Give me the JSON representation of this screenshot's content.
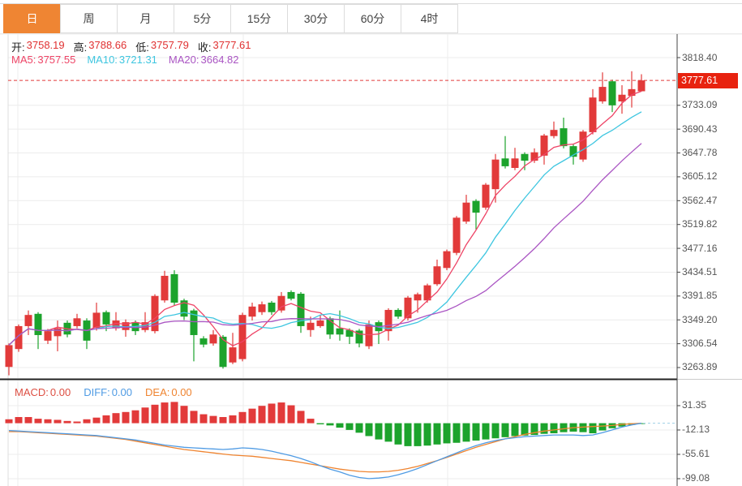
{
  "tabs": {
    "items": [
      {
        "label": "日",
        "selected": true
      },
      {
        "label": "周",
        "selected": false
      },
      {
        "label": "月",
        "selected": false
      },
      {
        "label": "5分",
        "selected": false
      },
      {
        "label": "15分",
        "selected": false
      },
      {
        "label": "30分",
        "selected": false
      },
      {
        "label": "60分",
        "selected": false
      },
      {
        "label": "4时",
        "selected": false
      }
    ]
  },
  "info": {
    "ohlc": [
      {
        "label": "开:",
        "value": "3758.19"
      },
      {
        "label": "高:",
        "value": "3788.66"
      },
      {
        "label": "低:",
        "value": "3757.79"
      },
      {
        "label": "收:",
        "value": "3777.61"
      }
    ],
    "ma": [
      {
        "label": "MA5:",
        "value": "3757.55",
        "color": "#ee4466"
      },
      {
        "label": "MA10:",
        "value": "3721.31",
        "color": "#3ec6e0"
      },
      {
        "label": "MA20:",
        "value": "3664.82",
        "color": "#aa55c3"
      }
    ],
    "macd": [
      {
        "label": "MACD:",
        "value": "0.00",
        "color": "#dd4f43"
      },
      {
        "label": "DIFF:",
        "value": "0.00",
        "color": "#4f9be4"
      },
      {
        "label": "DEA:",
        "value": "0.00",
        "color": "#ef8430"
      }
    ]
  },
  "colors": {
    "up": "#e23a3a",
    "down": "#1ca32c",
    "ma5": "#ee4466",
    "ma10": "#3ec6e0",
    "ma20": "#aa55c3",
    "diff": "#4f9be4",
    "dea": "#ef8430",
    "price_line": "#e23a3a",
    "badge_bg": "#e8220f",
    "grid": "#ececec",
    "axis": "#444",
    "tab_selected": "#ef8533"
  },
  "chart_data": {
    "type": "candlestick",
    "subpanel": "macd",
    "main": {
      "ticks": [
        {
          "label": "3818.40",
          "value": 3818.4
        },
        {
          "label": "3733.09",
          "value": 3733.09
        },
        {
          "label": "3690.43",
          "value": 3690.43
        },
        {
          "label": "3647.78",
          "value": 3647.78
        },
        {
          "label": "3605.12",
          "value": 3605.12
        },
        {
          "label": "3562.47",
          "value": 3562.47
        },
        {
          "label": "3519.82",
          "value": 3519.82
        },
        {
          "label": "3477.16",
          "value": 3477.16
        },
        {
          "label": "3434.51",
          "value": 3434.51
        },
        {
          "label": "3391.85",
          "value": 3391.85
        },
        {
          "label": "3349.20",
          "value": 3349.2
        },
        {
          "label": "3306.54",
          "value": 3306.54
        },
        {
          "label": "3263.89",
          "value": 3263.89
        }
      ],
      "last_price": {
        "label": "3777.61",
        "value": 3777.61
      },
      "ma_periods": [
        5,
        10,
        20
      ],
      "candles_format": [
        "open",
        "high",
        "low",
        "close"
      ],
      "candles": [
        [
          3265,
          3307,
          3250,
          3304
        ],
        [
          3297,
          3341,
          3292,
          3338
        ],
        [
          3338,
          3366,
          3322,
          3358
        ],
        [
          3360,
          3363,
          3297,
          3322
        ],
        [
          3312,
          3333,
          3306,
          3329
        ],
        [
          3320,
          3348,
          3293,
          3334
        ],
        [
          3344,
          3348,
          3318,
          3323
        ],
        [
          3338,
          3360,
          3334,
          3352
        ],
        [
          3348,
          3352,
          3297,
          3312
        ],
        [
          3335,
          3380,
          3330,
          3362
        ],
        [
          3363,
          3366,
          3329,
          3341
        ],
        [
          3334,
          3363,
          3330,
          3348
        ],
        [
          3331,
          3350,
          3319,
          3345
        ],
        [
          3345,
          3348,
          3322,
          3329
        ],
        [
          3331,
          3363,
          3327,
          3345
        ],
        [
          3329,
          3395,
          3325,
          3392
        ],
        [
          3384,
          3437,
          3380,
          3428
        ],
        [
          3431,
          3438,
          3375,
          3380
        ],
        [
          3384,
          3387,
          3349,
          3355
        ],
        [
          3366,
          3369,
          3275,
          3322
        ],
        [
          3316,
          3320,
          3300,
          3305
        ],
        [
          3307,
          3331,
          3303,
          3323
        ],
        [
          3319,
          3322,
          3262,
          3265
        ],
        [
          3273,
          3326,
          3270,
          3300
        ],
        [
          3279,
          3362,
          3275,
          3358
        ],
        [
          3355,
          3380,
          3348,
          3373
        ],
        [
          3363,
          3382,
          3358,
          3377
        ],
        [
          3380,
          3383,
          3358,
          3363
        ],
        [
          3366,
          3399,
          3362,
          3392
        ],
        [
          3399,
          3402,
          3384,
          3387
        ],
        [
          3396,
          3399,
          3326,
          3338
        ],
        [
          3331,
          3355,
          3319,
          3344
        ],
        [
          3338,
          3358,
          3335,
          3348
        ],
        [
          3352,
          3355,
          3315,
          3323
        ],
        [
          3334,
          3366,
          3312,
          3323
        ],
        [
          3331,
          3334,
          3306,
          3319
        ],
        [
          3330,
          3333,
          3300,
          3307
        ],
        [
          3302,
          3348,
          3297,
          3341
        ],
        [
          3345,
          3348,
          3306,
          3329
        ],
        [
          3329,
          3370,
          3312,
          3367
        ],
        [
          3367,
          3370,
          3351,
          3355
        ],
        [
          3352,
          3392,
          3348,
          3389
        ],
        [
          3384,
          3398,
          3362,
          3395
        ],
        [
          3384,
          3414,
          3380,
          3411
        ],
        [
          3413,
          3457,
          3410,
          3445
        ],
        [
          3442,
          3475,
          3438,
          3472
        ],
        [
          3469,
          3535,
          3465,
          3532
        ],
        [
          3525,
          3573,
          3521,
          3559
        ],
        [
          3562,
          3565,
          3511,
          3541
        ],
        [
          3550,
          3594,
          3546,
          3591
        ],
        [
          3583,
          3646,
          3559,
          3636
        ],
        [
          3638,
          3678,
          3620,
          3624
        ],
        [
          3621,
          3657,
          3617,
          3638
        ],
        [
          3646,
          3649,
          3617,
          3634
        ],
        [
          3634,
          3656,
          3630,
          3649
        ],
        [
          3643,
          3682,
          3627,
          3679
        ],
        [
          3678,
          3704,
          3674,
          3689
        ],
        [
          3692,
          3711,
          3656,
          3660
        ],
        [
          3660,
          3663,
          3627,
          3641
        ],
        [
          3636,
          3689,
          3632,
          3686
        ],
        [
          3685,
          3762,
          3681,
          3747
        ],
        [
          3740,
          3792,
          3736,
          3766
        ],
        [
          3776,
          3779,
          3721,
          3733
        ],
        [
          3740,
          3769,
          3718,
          3752
        ],
        [
          3750,
          3794,
          3729,
          3762
        ],
        [
          3758.19,
          3788.66,
          3757.79,
          3777.61
        ]
      ]
    },
    "macd": {
      "ticks": [
        {
          "label": "31.35",
          "value": 31.35
        },
        {
          "label": "-12.13",
          "value": -12.13
        },
        {
          "label": "-55.61",
          "value": -55.61
        },
        {
          "label": "-99.08",
          "value": -99.08
        }
      ],
      "hist": [
        7,
        11,
        11,
        8,
        7,
        6,
        4,
        3,
        7,
        10,
        14,
        18,
        20,
        23,
        28,
        33,
        37,
        38,
        31,
        22,
        16,
        13,
        11,
        14,
        20,
        26,
        31,
        35,
        37,
        32,
        22,
        8,
        -2,
        -4,
        -8,
        -12,
        -17,
        -23,
        -29,
        -33,
        -38,
        -41,
        -41,
        -40,
        -38,
        -36,
        -35,
        -33,
        -31,
        -29,
        -27,
        -25,
        -23,
        -22,
        -21,
        -19,
        -18,
        -16,
        -15,
        -16,
        -18,
        -13,
        -9,
        -6,
        -3,
        -1
      ],
      "diff": [
        -13,
        -14,
        -15,
        -16,
        -17,
        -18,
        -19,
        -20,
        -21,
        -22,
        -24,
        -26,
        -28,
        -30,
        -33,
        -36,
        -39,
        -41,
        -43,
        -44,
        -45,
        -46,
        -47,
        -46,
        -44,
        -45,
        -47,
        -50,
        -54,
        -58,
        -63,
        -69,
        -76,
        -82,
        -87,
        -93,
        -97,
        -99,
        -98,
        -96,
        -92,
        -87,
        -81,
        -74,
        -67,
        -60,
        -53,
        -46,
        -40,
        -35,
        -31,
        -28,
        -26,
        -24,
        -23,
        -22,
        -21,
        -21,
        -21,
        -22,
        -21,
        -17,
        -12,
        -7,
        -3,
        0
      ],
      "dea": [
        -15,
        -15,
        -16,
        -17,
        -18,
        -19,
        -20,
        -21,
        -22,
        -23,
        -25,
        -27,
        -29,
        -32,
        -35,
        -38,
        -41,
        -44,
        -47,
        -49,
        -51,
        -53,
        -55,
        -57,
        -58,
        -59,
        -61,
        -63,
        -65,
        -67,
        -70,
        -73,
        -76,
        -79,
        -82,
        -84,
        -86,
        -87,
        -87,
        -86,
        -84,
        -81,
        -77,
        -72,
        -67,
        -61,
        -55,
        -49,
        -43,
        -38,
        -33,
        -28,
        -24,
        -20,
        -17,
        -14,
        -12,
        -10,
        -8,
        -7,
        -6,
        -5,
        -4,
        -2,
        -1,
        0
      ]
    }
  }
}
